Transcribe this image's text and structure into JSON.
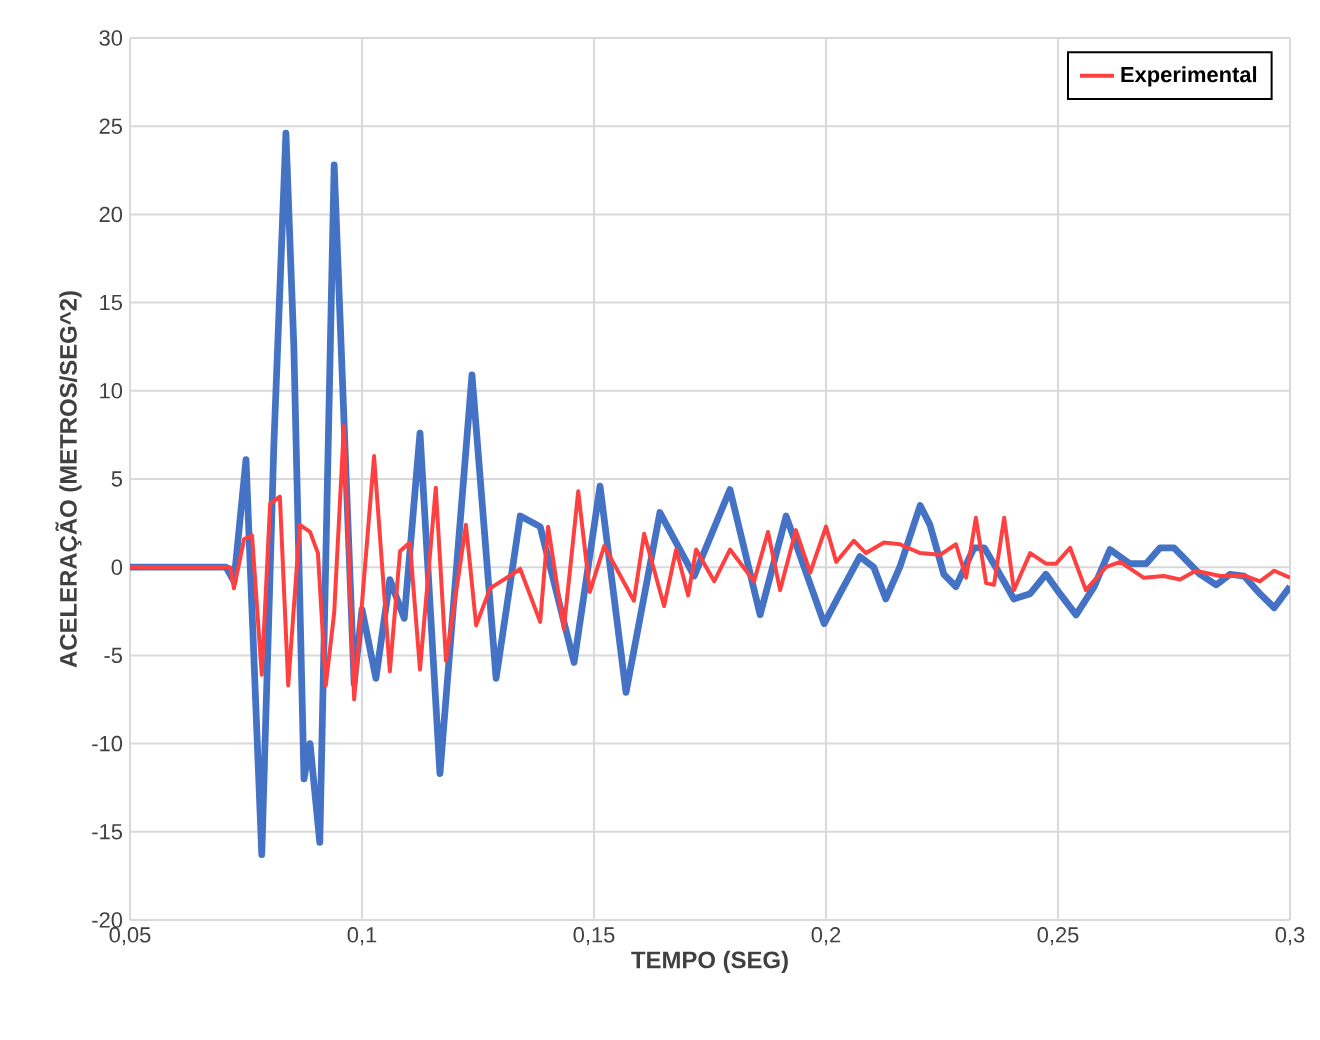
{
  "chart_data": {
    "type": "line",
    "xlabel": "TEMPO (SEG)",
    "ylabel": "ACELERAÇÃO (METROS/SEG^2)",
    "xlim": [
      0.05,
      0.3
    ],
    "ylim": [
      -20,
      30
    ],
    "xticks": [
      {
        "value": 0.05,
        "label": "0,05"
      },
      {
        "value": 0.1,
        "label": "0,1"
      },
      {
        "value": 0.15,
        "label": "0,15"
      },
      {
        "value": 0.2,
        "label": "0,2"
      },
      {
        "value": 0.25,
        "label": "0,25"
      },
      {
        "value": 0.3,
        "label": "0,3"
      }
    ],
    "yticks": [
      -20,
      -15,
      -10,
      -5,
      0,
      5,
      10,
      15,
      20,
      25,
      30
    ],
    "grid": true,
    "legend": "top right",
    "marker": "none",
    "line_style": "solid",
    "series": [
      {
        "color": "#4472c4",
        "x": [
          0.05,
          0.0707,
          0.0724,
          0.075,
          0.0784,
          0.081,
          0.0836,
          0.0853,
          0.0875,
          0.0888,
          0.0909,
          0.094,
          0.0983,
          0.1,
          0.103,
          0.106,
          0.1091,
          0.1125,
          0.1168,
          0.1237,
          0.1289,
          0.1341,
          0.1384,
          0.1457,
          0.1513,
          0.1569,
          0.1642,
          0.1716,
          0.1793,
          0.1858,
          0.1914,
          0.1996,
          0.203,
          0.2073,
          0.2103,
          0.2129,
          0.2159,
          0.2203,
          0.2224,
          0.2254,
          0.228,
          0.2319,
          0.2341,
          0.2366,
          0.2405,
          0.244,
          0.2474,
          0.2504,
          0.2539,
          0.2578,
          0.2612,
          0.2655,
          0.269,
          0.272,
          0.275,
          0.2776,
          0.2806,
          0.2841,
          0.2871,
          0.2901,
          0.2935,
          0.2966,
          0.3
        ],
        "values": [
          0,
          0,
          -0.8,
          6.1,
          -16.3,
          6.9,
          24.6,
          12.6,
          -12,
          -10,
          -15.6,
          22.8,
          -6.6,
          -2.4,
          -6.3,
          -0.7,
          -2.9,
          7.6,
          -11.7,
          10.9,
          -6.3,
          2.9,
          2.3,
          -5.4,
          4.6,
          -7.1,
          3.1,
          -0.5,
          4.4,
          -2.7,
          2.9,
          -3.2,
          -1.5,
          0.6,
          0,
          -1.8,
          0,
          3.5,
          2.4,
          -0.4,
          -1.1,
          1.1,
          1.1,
          0,
          -1.8,
          -1.5,
          -0.4,
          -1.5,
          -2.7,
          -1.1,
          1.0,
          0.2,
          0.2,
          1.1,
          1.1,
          0.4,
          -0.4,
          -1.0,
          -0.4,
          -0.5,
          -1.5,
          -2.3,
          -1.1
        ]
      },
      {
        "name": "Experimental",
        "color": "#ff4040",
        "x": [
          0.05,
          0.0716,
          0.0724,
          0.0746,
          0.0763,
          0.0784,
          0.0802,
          0.0823,
          0.0841,
          0.0866,
          0.0888,
          0.0905,
          0.0922,
          0.094,
          0.0961,
          0.0983,
          0.1026,
          0.106,
          0.1082,
          0.1103,
          0.1125,
          0.1159,
          0.1181,
          0.1224,
          0.1246,
          0.1276,
          0.1341,
          0.1384,
          0.1401,
          0.1435,
          0.1466,
          0.1491,
          0.1522,
          0.1586,
          0.1608,
          0.1651,
          0.1677,
          0.1703,
          0.172,
          0.1759,
          0.1793,
          0.1845,
          0.1875,
          0.1901,
          0.1935,
          0.1966,
          0.2,
          0.2022,
          0.206,
          0.2086,
          0.2125,
          0.2159,
          0.2203,
          0.2246,
          0.228,
          0.2302,
          0.2323,
          0.2345,
          0.2362,
          0.2384,
          0.2405,
          0.244,
          0.2474,
          0.2496,
          0.2526,
          0.256,
          0.2603,
          0.2634,
          0.2685,
          0.2728,
          0.2763,
          0.2797,
          0.2849,
          0.2905,
          0.2935,
          0.2966,
          0.3
        ],
        "values": [
          0,
          0,
          -1.2,
          1.6,
          1.8,
          -6.1,
          3.6,
          4.0,
          -6.7,
          2.4,
          2.0,
          0.8,
          -6.7,
          -2.6,
          8.0,
          -7.5,
          6.3,
          -5.9,
          0.9,
          1.4,
          -5.8,
          4.5,
          -5.3,
          2.4,
          -3.3,
          -1.2,
          -0.1,
          -3.1,
          2.3,
          -3.5,
          4.3,
          -1.4,
          1.2,
          -1.9,
          1.9,
          -2.2,
          1.0,
          -1.6,
          1.0,
          -0.8,
          1.0,
          -0.8,
          2.0,
          -1.3,
          2.1,
          -0.3,
          2.3,
          0.3,
          1.5,
          0.8,
          1.4,
          1.3,
          0.8,
          0.7,
          1.3,
          -0.6,
          2.8,
          -0.9,
          -1.0,
          2.8,
          -1.3,
          0.8,
          0.2,
          0.2,
          1.1,
          -1.3,
          0.0,
          0.3,
          -0.6,
          -0.5,
          -0.7,
          -0.2,
          -0.5,
          -0.5,
          -0.8,
          -0.2,
          -0.6
        ]
      }
    ]
  }
}
